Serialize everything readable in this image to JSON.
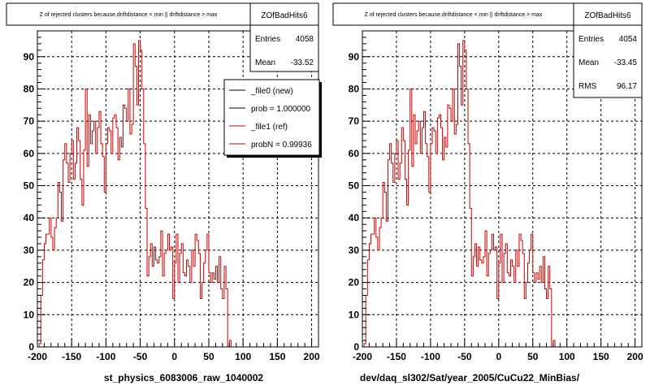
{
  "chart_data": [
    {
      "type": "histogram",
      "title": "Z of rejected clusters because driftdistance < min || driftdistance > max",
      "xlabel": "st_physics_6083006_raw_1040002",
      "xlim": [
        -200,
        210
      ],
      "ylim": [
        0,
        98
      ],
      "xticks": [
        -200,
        -150,
        -100,
        -50,
        0,
        50,
        100,
        150,
        200
      ],
      "xtick_labels": [
        "-200",
        "-150",
        "-100",
        "-50",
        "0",
        "50",
        "100",
        "150",
        "200"
      ],
      "yticks": [
        0,
        10,
        20,
        30,
        40,
        50,
        60,
        70,
        80,
        90
      ],
      "ytick_labels": [
        "0",
        "10",
        "20",
        "30",
        "40",
        "50",
        "60",
        "70",
        "80",
        "90"
      ],
      "grid": true,
      "bin_start": -200,
      "bin_width": 2.5,
      "stats": {
        "name": "ZOfBadHits6",
        "entries_label": "Entries",
        "entries": "4058",
        "mean_label": "Mean",
        "mean": "-33.52"
      },
      "legend": {
        "placement": "top-right",
        "entries": [
          {
            "label": "_file0 (new)",
            "color": "#000000"
          },
          {
            "label": "prob = 1.000000",
            "color": "#000000"
          },
          {
            "label": "_file1 (ref)",
            "color": "#cc0000"
          },
          {
            "label": "probN = 0.99936",
            "color": "#cc0000"
          }
        ]
      },
      "series": [
        {
          "color": "#cc0000",
          "values": [
            0,
            1,
            16,
            27,
            32,
            35,
            35,
            40,
            34,
            30,
            37,
            40,
            51,
            48,
            39,
            58,
            63,
            57,
            51,
            60,
            64,
            52,
            57,
            68,
            64,
            52,
            44,
            61,
            80,
            56,
            72,
            63,
            67,
            70,
            60,
            68,
            73,
            63,
            59,
            48,
            63,
            68,
            67,
            60,
            71,
            72,
            68,
            58,
            65,
            62,
            75,
            74,
            70,
            80,
            66,
            69,
            94,
            87,
            75,
            95,
            92,
            80,
            63,
            43,
            22,
            28,
            32,
            25,
            31,
            27,
            26,
            28,
            36,
            22,
            29,
            30,
            35,
            30,
            31,
            15,
            26,
            35,
            20,
            29,
            32,
            23,
            22,
            27,
            25,
            20,
            30,
            25,
            35,
            33,
            29,
            15,
            20,
            26,
            30,
            35,
            23,
            20,
            23,
            21,
            25,
            20,
            28,
            18,
            15,
            25,
            18,
            0,
            2
          ]
        }
      ]
    },
    {
      "type": "histogram",
      "title": "Z of rejected clusters because driftdistance < min || driftdistance > max",
      "xlabel": "dev/daq_sl302/Sat/year_2005/CuCu22_MinBias/",
      "xlim": [
        -200,
        210
      ],
      "ylim": [
        0,
        98
      ],
      "xticks": [
        -200,
        -150,
        -100,
        -50,
        0,
        50,
        100,
        150,
        200
      ],
      "xtick_labels": [
        "-200",
        "-150",
        "-100",
        "-50",
        "0",
        "50",
        "100",
        "150",
        "200"
      ],
      "yticks": [
        0,
        10,
        20,
        30,
        40,
        50,
        60,
        70,
        80,
        90
      ],
      "ytick_labels": [
        "0",
        "10",
        "20",
        "30",
        "40",
        "50",
        "60",
        "70",
        "80",
        "90"
      ],
      "grid": true,
      "bin_start": -200,
      "bin_width": 2.5,
      "stats": {
        "name": "ZOfBadHits6",
        "entries_label": "Entries",
        "entries": "4054",
        "mean_label": "Mean",
        "mean": "-33.45",
        "rms_label": "RMS",
        "rms": "96.17"
      },
      "series": [
        {
          "color": "#cc0000",
          "values": [
            0,
            1,
            16,
            27,
            32,
            35,
            35,
            40,
            34,
            30,
            37,
            40,
            51,
            48,
            39,
            58,
            63,
            57,
            51,
            60,
            64,
            52,
            57,
            68,
            64,
            52,
            44,
            61,
            80,
            56,
            72,
            63,
            67,
            70,
            60,
            68,
            73,
            63,
            59,
            48,
            63,
            68,
            67,
            60,
            71,
            72,
            68,
            58,
            65,
            62,
            75,
            74,
            70,
            80,
            66,
            69,
            94,
            87,
            75,
            95,
            92,
            80,
            63,
            43,
            22,
            28,
            32,
            25,
            31,
            27,
            26,
            28,
            36,
            22,
            29,
            30,
            35,
            30,
            31,
            15,
            26,
            35,
            20,
            29,
            32,
            23,
            22,
            27,
            25,
            20,
            30,
            25,
            35,
            33,
            29,
            15,
            20,
            26,
            30,
            35,
            23,
            20,
            23,
            21,
            25,
            20,
            28,
            18,
            15,
            25,
            18,
            0,
            2
          ]
        }
      ]
    }
  ]
}
